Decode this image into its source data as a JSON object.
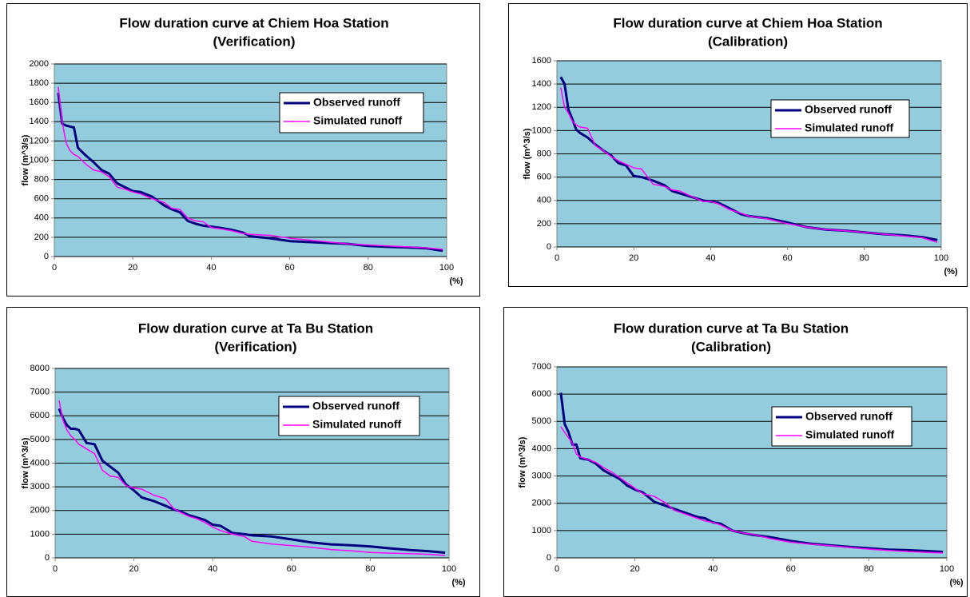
{
  "chart_data": [
    {
      "type": "line",
      "title": "Flow duration curve at Chiem Hoa Station",
      "subtitle": "(Verification)",
      "y_label": "flow (m^3/s)",
      "x_label": "(%)",
      "x": [
        1,
        2,
        3,
        4,
        5,
        6,
        8,
        10,
        12,
        14,
        16,
        18,
        20,
        22,
        25,
        28,
        30,
        32,
        34,
        36,
        38,
        40,
        42,
        45,
        48,
        50,
        55,
        60,
        65,
        70,
        75,
        80,
        85,
        90,
        95,
        99
      ],
      "series": [
        {
          "name": "Observed runoff",
          "color": "#000080",
          "values": [
            1700,
            1380,
            1360,
            1350,
            1340,
            1130,
            1050,
            980,
            900,
            860,
            760,
            720,
            680,
            670,
            620,
            530,
            490,
            460,
            370,
            340,
            320,
            310,
            300,
            280,
            250,
            210,
            190,
            160,
            150,
            140,
            130,
            110,
            100,
            95,
            85,
            60
          ]
        },
        {
          "name": "Simulated runoff",
          "color": "#ff00ff",
          "values": [
            1760,
            1400,
            1180,
            1100,
            1060,
            1040,
            960,
            900,
            880,
            830,
            720,
            700,
            670,
            650,
            600,
            560,
            500,
            490,
            400,
            370,
            360,
            300,
            290,
            270,
            240,
            230,
            220,
            190,
            170,
            150,
            130,
            120,
            110,
            100,
            90,
            75
          ]
        }
      ],
      "xlim": [
        0,
        100
      ],
      "xticks": [
        0,
        20,
        40,
        60,
        80,
        100
      ],
      "ylim": [
        0,
        2000
      ],
      "yticks": [
        0,
        200,
        400,
        600,
        800,
        1000,
        1200,
        1400,
        1600,
        1800,
        2000
      ],
      "grid": true
    },
    {
      "type": "line",
      "title": "Flow duration curve at Chiem Hoa Station",
      "subtitle": "(Calibration)",
      "y_label": "flow (m^3/s)",
      "x_label": "(%)",
      "x": [
        1,
        2,
        3,
        4,
        5,
        6,
        8,
        10,
        12,
        14,
        16,
        18,
        20,
        22,
        25,
        28,
        30,
        32,
        34,
        36,
        38,
        40,
        42,
        45,
        48,
        50,
        55,
        60,
        65,
        70,
        75,
        80,
        85,
        90,
        95,
        99
      ],
      "series": [
        {
          "name": "Observed runoff",
          "color": "#000080",
          "values": [
            1460,
            1400,
            1180,
            1100,
            1010,
            980,
            940,
            880,
            830,
            790,
            720,
            700,
            610,
            600,
            570,
            530,
            480,
            460,
            440,
            420,
            400,
            390,
            380,
            330,
            280,
            265,
            245,
            210,
            170,
            150,
            140,
            125,
            110,
            100,
            85,
            60
          ]
        },
        {
          "name": "Simulated runoff",
          "color": "#ff00ff",
          "values": [
            1370,
            1200,
            1150,
            1080,
            1050,
            1030,
            1020,
            870,
            830,
            780,
            740,
            710,
            680,
            670,
            540,
            520,
            490,
            480,
            450,
            420,
            390,
            390,
            370,
            320,
            290,
            265,
            240,
            200,
            170,
            150,
            140,
            125,
            110,
            95,
            80,
            40
          ]
        }
      ],
      "xlim": [
        0,
        100
      ],
      "xticks": [
        0,
        20,
        40,
        60,
        80,
        100
      ],
      "ylim": [
        0,
        1600
      ],
      "yticks": [
        0,
        200,
        400,
        600,
        800,
        1000,
        1200,
        1400,
        1600
      ],
      "grid": true
    },
    {
      "type": "line",
      "title": "Flow duration curve at Ta Bu Station",
      "subtitle": "(Verification)",
      "y_label": "flow (m^3/s)",
      "x_label": "(%)",
      "x": [
        1,
        2,
        3,
        4,
        5,
        6,
        8,
        10,
        12,
        14,
        16,
        18,
        20,
        22,
        25,
        28,
        30,
        32,
        34,
        36,
        38,
        40,
        42,
        45,
        48,
        50,
        55,
        60,
        65,
        70,
        75,
        80,
        85,
        90,
        95,
        99
      ],
      "series": [
        {
          "name": "Observed runoff",
          "color": "#000080",
          "values": [
            6300,
            5900,
            5600,
            5450,
            5450,
            5400,
            4850,
            4800,
            4100,
            3850,
            3600,
            3100,
            2850,
            2550,
            2400,
            2200,
            2050,
            1950,
            1800,
            1700,
            1600,
            1400,
            1350,
            1050,
            1000,
            950,
            900,
            780,
            650,
            570,
            530,
            480,
            400,
            330,
            280,
            220
          ]
        },
        {
          "name": "Simulated runoff",
          "color": "#ff00ff",
          "values": [
            6650,
            5800,
            5400,
            5150,
            5000,
            4800,
            4600,
            4400,
            3700,
            3450,
            3400,
            3050,
            2950,
            2900,
            2650,
            2500,
            2100,
            1900,
            1750,
            1650,
            1500,
            1300,
            1150,
            1000,
            900,
            700,
            580,
            520,
            450,
            350,
            300,
            230,
            200,
            180,
            150,
            100
          ]
        }
      ],
      "xlim": [
        0,
        100
      ],
      "xticks": [
        0,
        20,
        40,
        60,
        80,
        100
      ],
      "ylim": [
        0,
        8000
      ],
      "yticks": [
        0,
        1000,
        2000,
        3000,
        4000,
        5000,
        6000,
        7000,
        8000
      ],
      "grid": true
    },
    {
      "type": "line",
      "title": "Flow duration curve at Ta Bu Station",
      "subtitle": "(Calibration)",
      "y_label": "flow (m^3/s)",
      "x_label": "(%)",
      "x": [
        1,
        2,
        3,
        4,
        5,
        6,
        8,
        10,
        12,
        14,
        16,
        18,
        20,
        22,
        25,
        28,
        30,
        32,
        34,
        36,
        38,
        40,
        42,
        45,
        48,
        50,
        55,
        60,
        65,
        70,
        75,
        80,
        85,
        90,
        95,
        99
      ],
      "series": [
        {
          "name": "Observed runoff",
          "color": "#000080",
          "values": [
            6050,
            4900,
            4600,
            4150,
            4150,
            3650,
            3600,
            3450,
            3200,
            3050,
            2900,
            2650,
            2500,
            2400,
            2050,
            1900,
            1800,
            1700,
            1600,
            1500,
            1450,
            1300,
            1250,
            1000,
            900,
            850,
            750,
            620,
            520,
            460,
            400,
            350,
            300,
            280,
            250,
            220
          ]
        },
        {
          "name": "Simulated runoff",
          "color": "#ff00ff",
          "values": [
            4800,
            4600,
            4400,
            4200,
            3800,
            3700,
            3600,
            3500,
            3300,
            3150,
            2950,
            2750,
            2550,
            2350,
            2250,
            2000,
            1750,
            1650,
            1550,
            1450,
            1350,
            1300,
            1200,
            1000,
            900,
            870,
            700,
            570,
            500,
            450,
            380,
            320,
            270,
            230,
            200,
            180
          ]
        }
      ],
      "xlim": [
        0,
        100
      ],
      "xticks": [
        0,
        20,
        40,
        60,
        80,
        100
      ],
      "ylim": [
        0,
        7000
      ],
      "yticks": [
        0,
        1000,
        2000,
        3000,
        4000,
        5000,
        6000,
        7000
      ],
      "grid": true
    }
  ]
}
